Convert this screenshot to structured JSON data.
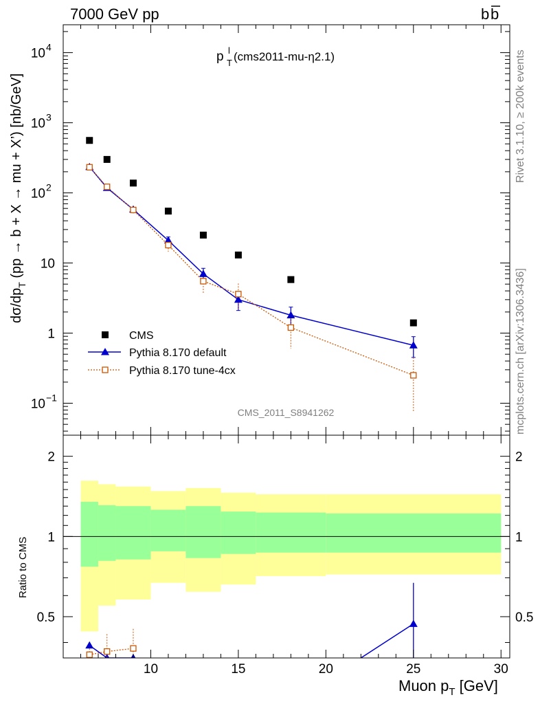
{
  "header": {
    "left": "7000 GeV pp",
    "right_main": "b",
    "right_bar": "b"
  },
  "side_labels": {
    "rivet": "Rivet 3.1.10, ≥ 200k events",
    "mcplots": "mcplots.cern.ch [arXiv:1306.3436]"
  },
  "plot_title": {
    "main": "p",
    "sup": "l",
    "sub": "T",
    "rest": " (cms2011-mu-η2.1)"
  },
  "watermark": "CMS_2011_S8941262",
  "axes": {
    "xlabel_main": "Muon p",
    "xlabel_sub": "T",
    "xlabel_rest": " [GeV]",
    "ylabel_pre": "dσ/dp",
    "ylabel_sub": "T",
    "ylabel_post": " (pp → b + X → mu + X’) [nb/GeV]",
    "ratio_ylabel": "Ratio to CMS",
    "x_ticks": [
      "10",
      "15",
      "20",
      "25",
      "30"
    ],
    "y_ticks": [
      {
        "label": "10",
        "exp": "−1",
        "value": 0.1
      },
      {
        "label": "1",
        "exp": "",
        "value": 1
      },
      {
        "label": "10",
        "exp": "",
        "value": 10
      },
      {
        "label": "10",
        "exp": "2",
        "value": 100
      },
      {
        "label": "10",
        "exp": "3",
        "value": 1000
      },
      {
        "label": "10",
        "exp": "4",
        "value": 10000
      }
    ],
    "ratio_ticks": [
      {
        "label": "0.5",
        "value": 0.5
      },
      {
        "label": "1",
        "value": 1
      },
      {
        "label": "2",
        "value": 2
      }
    ]
  },
  "legend": [
    {
      "label": "CMS",
      "color": "#000000",
      "marker": "square-filled"
    },
    {
      "label": "Pythia 8.170 default",
      "color": "#0000cc",
      "marker": "triangle"
    },
    {
      "label": "Pythia 8.170 tune-4cx",
      "color": "#cc5500",
      "marker": "square-open"
    }
  ],
  "chart_data": {
    "type": "scatter",
    "title": "p_T^l (cms2011-mu-η2.1)",
    "xlabel": "Muon p_T [GeV]",
    "ylabel": "dσ/dp_T (pp → b + X → mu + X’) [nb/GeV]",
    "xlim": [
      5,
      30.5
    ],
    "ylim": [
      0.035,
      25000
    ],
    "yscale": "log",
    "ratio_ylim": [
      0.35,
      2.4
    ],
    "ratio_yscale": "log",
    "series": [
      {
        "name": "CMS",
        "color": "#000000",
        "x": [
          6.5,
          7.5,
          9.0,
          11.0,
          13.0,
          15.0,
          18.0,
          25.0
        ],
        "xlo": [
          6.0,
          7.0,
          8.0,
          10.0,
          12.0,
          14.0,
          16.0,
          20.0
        ],
        "xhi": [
          7.0,
          8.0,
          10.0,
          12.0,
          14.0,
          16.0,
          20.0,
          30.0
        ],
        "y": [
          560,
          300,
          138,
          55,
          25,
          13,
          5.8,
          1.4
        ]
      },
      {
        "name": "Pythia 8.170 default",
        "color": "#0000cc",
        "x": [
          6.5,
          7.5,
          9.0,
          11.0,
          13.0,
          15.0,
          18.0,
          25.0
        ],
        "y": [
          235,
          118,
          58,
          21,
          7.0,
          3.0,
          1.8,
          0.67
        ],
        "yerr_lo": [
          15,
          8,
          4,
          2.5,
          1.1,
          0.9,
          0.55,
          0.22
        ],
        "yerr_hi": [
          15,
          8,
          4,
          2.5,
          1.4,
          0.9,
          0.55,
          0.22
        ]
      },
      {
        "name": "Pythia 8.170 tune-4cx",
        "color": "#cc5500",
        "x": [
          6.5,
          7.5,
          9.0,
          11.0,
          13.0,
          15.0,
          18.0,
          25.0
        ],
        "y": [
          232,
          122,
          57,
          18,
          5.5,
          3.6,
          1.2,
          0.25
        ],
        "yerr_lo": [
          18,
          10,
          6,
          3.5,
          1.9,
          1.5,
          0.6,
          0.175
        ],
        "yerr_hi": [
          18,
          10,
          6,
          3.5,
          1.9,
          1.5,
          0.6,
          0.2
        ]
      }
    ],
    "ratio": {
      "band_edges": [
        6.0,
        7.0,
        8.0,
        10.0,
        12.0,
        14.0,
        16.0,
        20.0,
        30.0
      ],
      "inner_lo": [
        0.77,
        0.81,
        0.82,
        0.88,
        0.83,
        0.86,
        0.87,
        0.87
      ],
      "inner_hi": [
        1.35,
        1.31,
        1.3,
        1.26,
        1.3,
        1.24,
        1.23,
        1.22
      ],
      "outer_lo": [
        0.44,
        0.55,
        0.58,
        0.67,
        0.62,
        0.66,
        0.71,
        0.72
      ],
      "outer_hi": [
        1.62,
        1.57,
        1.54,
        1.48,
        1.52,
        1.46,
        1.44,
        1.44
      ],
      "default": {
        "x": [
          6.5,
          7.5,
          9.0,
          11.0,
          13.0,
          15.0,
          18.0,
          22.0,
          25.0
        ],
        "y": [
          0.39,
          0.35,
          0.35,
          0.34,
          0.3,
          0.29,
          0.31,
          0.35,
          0.47
        ],
        "yerr": [
          0.02,
          0.0,
          0.0,
          0.0,
          0.0,
          0.0,
          0.0,
          0.0,
          0.2
        ]
      },
      "tune4cx": {
        "x": [
          6.5,
          7.5,
          9.0
        ],
        "y": [
          0.36,
          0.37,
          0.38
        ],
        "yerr": [
          0.02,
          0.06,
          0.07
        ]
      },
      "colors": {
        "inner": "#99ff99",
        "outer": "#ffff99"
      }
    }
  }
}
